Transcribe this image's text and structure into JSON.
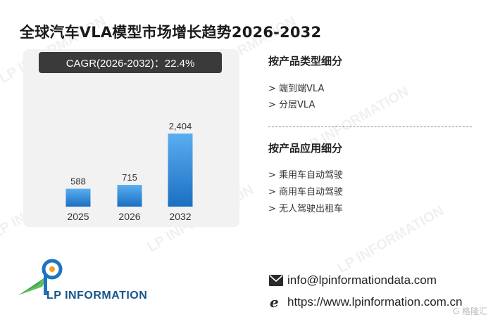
{
  "title": "全球汽车VLA模型市场增长趋势2026-2032",
  "cagr_label": "CAGR(2026-2032)：22.4%",
  "chart_data": {
    "type": "bar",
    "categories": [
      "2025",
      "2026",
      "2032"
    ],
    "values": [
      588,
      715,
      2404
    ],
    "value_labels": [
      "588",
      "715",
      "2,404"
    ],
    "bar_color_top": "#5aaef0",
    "bar_color_bottom": "#1b6fc2"
  },
  "type_section": {
    "heading": "按产品类型细分",
    "items": [
      "> 端到端VLA",
      "> 分层VLA"
    ]
  },
  "app_section": {
    "heading": "按产品应用细分",
    "items": [
      "> 乘用车自动驾驶",
      "> 商用车自动驾驶",
      "> 无人驾驶出租车"
    ]
  },
  "contact": {
    "email": "info@lpinformationdata.com",
    "website": "https://www.lpinformation.com.cn"
  },
  "logo_text": "LP INFORMATION",
  "watermark": "LP INFORMATION",
  "corner_mark": "G 格隆汇"
}
